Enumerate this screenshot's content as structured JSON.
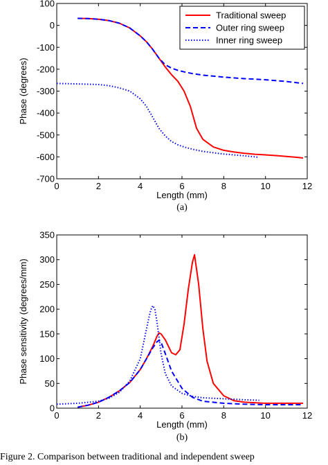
{
  "caption": "Figure 2.  Comparison between traditional and independent sweep",
  "chart_data": [
    {
      "type": "line",
      "panel_label": "(a)",
      "xlabel": "Length (mm)",
      "ylabel": "Phase (degrees)",
      "xlim": [
        0,
        12
      ],
      "ylim": [
        -700,
        100
      ],
      "xticks": [
        0,
        2,
        4,
        6,
        8,
        10,
        12
      ],
      "yticks": [
        -700,
        -600,
        -500,
        -400,
        -300,
        -200,
        -100,
        0,
        100
      ],
      "grid": false,
      "legend_position": "top-right",
      "series": [
        {
          "name": "Traditional sweep",
          "color": "#ff0000",
          "style": "solid",
          "x": [
            1.0,
            1.5,
            2.0,
            2.5,
            3.0,
            3.5,
            4.0,
            4.3,
            4.6,
            4.9,
            5.2,
            5.5,
            5.8,
            6.1,
            6.4,
            6.7,
            7.0,
            7.5,
            8.0,
            8.5,
            9.0,
            9.5,
            10.0,
            10.5,
            11.0,
            11.5,
            11.8
          ],
          "y": [
            32,
            31,
            28,
            22,
            10,
            -12,
            -48,
            -75,
            -110,
            -150,
            -190,
            -225,
            -255,
            -300,
            -370,
            -470,
            -520,
            -555,
            -570,
            -578,
            -584,
            -588,
            -591,
            -594,
            -598,
            -602,
            -605
          ]
        },
        {
          "name": "Outer ring sweep",
          "color": "#0000ff",
          "style": "dashed",
          "x": [
            1.0,
            1.5,
            2.0,
            2.5,
            3.0,
            3.5,
            4.0,
            4.3,
            4.6,
            4.9,
            5.2,
            5.5,
            5.8,
            6.1,
            6.5,
            7.0,
            8.0,
            9.0,
            10.0,
            11.0,
            11.8
          ],
          "y": [
            32,
            31,
            28,
            22,
            10,
            -12,
            -48,
            -75,
            -110,
            -150,
            -180,
            -195,
            -205,
            -212,
            -220,
            -227,
            -236,
            -243,
            -248,
            -256,
            -265
          ]
        },
        {
          "name": "Inner ring sweep",
          "color": "#0000ff",
          "style": "dotted",
          "x": [
            0.0,
            1.0,
            2.0,
            2.5,
            3.0,
            3.5,
            4.0,
            4.3,
            4.6,
            4.9,
            5.2,
            5.5,
            5.8,
            6.1,
            6.5,
            7.0,
            8.0,
            9.0,
            9.7
          ],
          "y": [
            -265,
            -267,
            -270,
            -275,
            -285,
            -300,
            -335,
            -370,
            -420,
            -470,
            -505,
            -530,
            -545,
            -555,
            -565,
            -575,
            -587,
            -595,
            -602
          ]
        }
      ]
    },
    {
      "type": "line",
      "panel_label": "(b)",
      "xlabel": "Length (mm)",
      "ylabel": "Phase sensitivity (degrees/mm)",
      "xlim": [
        0,
        12
      ],
      "ylim": [
        0,
        350
      ],
      "xticks": [
        0,
        2,
        4,
        6,
        8,
        10,
        12
      ],
      "yticks": [
        0,
        50,
        100,
        150,
        200,
        250,
        300,
        350
      ],
      "grid": false,
      "legend_position": "none",
      "series": [
        {
          "color": "#ff0000",
          "style": "solid",
          "x": [
            1.0,
            1.5,
            2.0,
            2.5,
            3.0,
            3.5,
            4.0,
            4.3,
            4.6,
            4.8,
            4.9,
            5.0,
            5.2,
            5.5,
            5.7,
            5.9,
            6.1,
            6.3,
            6.5,
            6.6,
            6.8,
            7.0,
            7.2,
            7.5,
            8.0,
            8.5,
            9.0,
            10.0,
            11.0,
            11.8
          ],
          "y": [
            2,
            6,
            12,
            22,
            35,
            52,
            78,
            100,
            125,
            145,
            152,
            150,
            138,
            112,
            108,
            118,
            170,
            240,
            295,
            310,
            250,
            160,
            95,
            50,
            25,
            15,
            12,
            10,
            10,
            10
          ]
        },
        {
          "color": "#0000ff",
          "style": "dashed",
          "x": [
            1.0,
            1.5,
            2.0,
            2.5,
            3.0,
            3.5,
            4.0,
            4.3,
            4.6,
            4.8,
            4.9,
            5.0,
            5.2,
            5.5,
            6.0,
            6.5,
            7.0,
            8.0,
            9.0,
            10.0,
            11.0,
            11.8
          ],
          "y": [
            2,
            6,
            12,
            22,
            35,
            52,
            78,
            100,
            122,
            134,
            137,
            133,
            110,
            75,
            40,
            22,
            14,
            10,
            8,
            7,
            7,
            7
          ]
        },
        {
          "color": "#0000ff",
          "style": "dotted",
          "x": [
            0.0,
            1.0,
            2.0,
            2.5,
            3.0,
            3.5,
            4.0,
            4.2,
            4.4,
            4.5,
            4.6,
            4.7,
            4.8,
            5.0,
            5.2,
            5.5,
            6.0,
            6.5,
            7.0,
            7.5,
            8.0,
            8.5,
            9.0,
            9.7
          ],
          "y": [
            8,
            10,
            14,
            20,
            32,
            55,
            100,
            140,
            180,
            198,
            207,
            200,
            175,
            110,
            70,
            45,
            30,
            24,
            21,
            20,
            19,
            18,
            17,
            16
          ]
        }
      ]
    }
  ]
}
